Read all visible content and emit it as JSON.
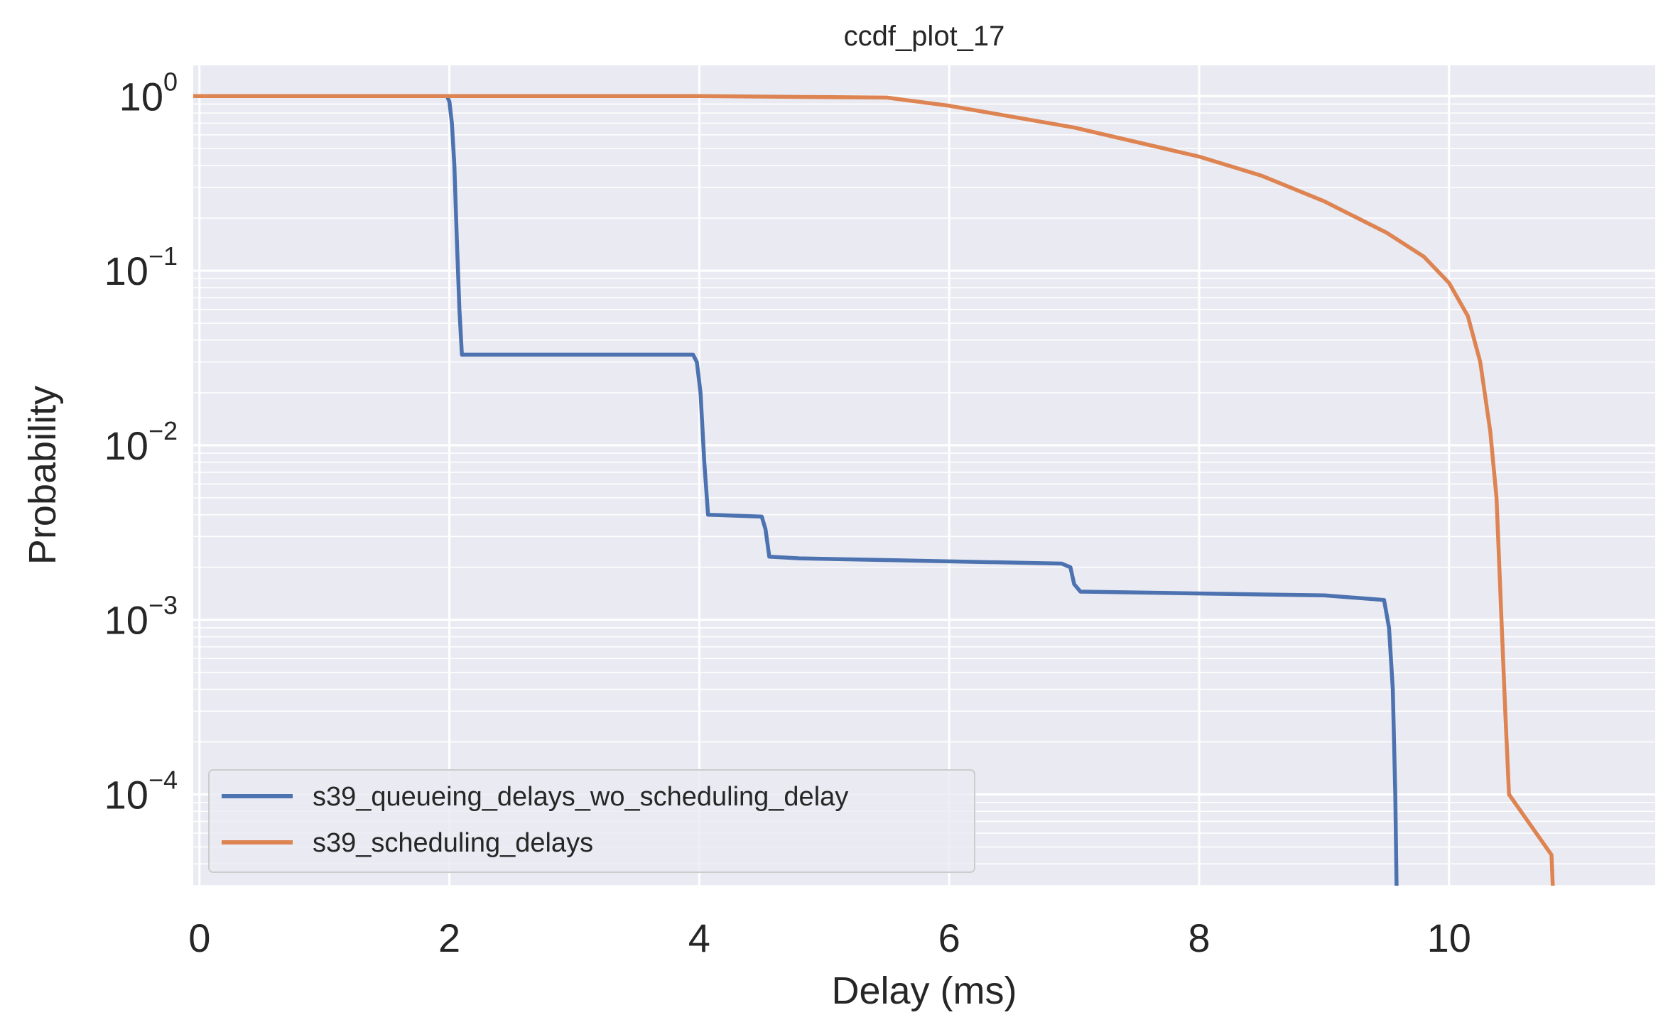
{
  "chart_data": {
    "type": "line",
    "title": "ccdf_plot_17",
    "xlabel": "Delay (ms)",
    "ylabel": "Probability",
    "xlim": [
      -0.05,
      11.65
    ],
    "ylim": [
      3e-05,
      1.5
    ],
    "yscale": "log",
    "x_ticks": [
      {
        "value": 0,
        "label": "0"
      },
      {
        "value": 2,
        "label": "2"
      },
      {
        "value": 4,
        "label": "4"
      },
      {
        "value": 6,
        "label": "6"
      },
      {
        "value": 8,
        "label": "8"
      },
      {
        "value": 10,
        "label": "10"
      }
    ],
    "y_ticks": [
      {
        "value": 1,
        "base": "10",
        "exp": "0"
      },
      {
        "value": 0.1,
        "base": "10",
        "exp": "−1"
      },
      {
        "value": 0.01,
        "base": "10",
        "exp": "−2"
      },
      {
        "value": 0.001,
        "base": "10",
        "exp": "−3"
      },
      {
        "value": 0.0001,
        "base": "10",
        "exp": "−4"
      }
    ],
    "grid": true,
    "legend_position": "lower-left",
    "series": [
      {
        "name": "s39_queueing_delays_wo_scheduling_delay",
        "color": "#4c72b0",
        "points": [
          [
            -0.05,
            1.0
          ],
          [
            1.98,
            1.0
          ],
          [
            2.0,
            0.93
          ],
          [
            2.02,
            0.7
          ],
          [
            2.04,
            0.4
          ],
          [
            2.06,
            0.15
          ],
          [
            2.08,
            0.06
          ],
          [
            2.1,
            0.033
          ],
          [
            3.95,
            0.033
          ],
          [
            3.98,
            0.03
          ],
          [
            4.01,
            0.02
          ],
          [
            4.04,
            0.008
          ],
          [
            4.07,
            0.004
          ],
          [
            4.5,
            0.0039
          ],
          [
            4.53,
            0.0033
          ],
          [
            4.56,
            0.0023
          ],
          [
            4.8,
            0.00225
          ],
          [
            6.9,
            0.0021
          ],
          [
            6.97,
            0.002
          ],
          [
            7.0,
            0.0016
          ],
          [
            7.05,
            0.00145
          ],
          [
            9.0,
            0.00138
          ],
          [
            9.48,
            0.0013
          ],
          [
            9.52,
            0.0009
          ],
          [
            9.55,
            0.0004
          ],
          [
            9.57,
            0.0001
          ],
          [
            9.58,
            3e-05
          ]
        ]
      },
      {
        "name": "s39_scheduling_delays",
        "color": "#dd8452",
        "points": [
          [
            -0.05,
            1.0
          ],
          [
            1.0,
            1.0
          ],
          [
            4.0,
            1.0
          ],
          [
            5.5,
            0.98
          ],
          [
            6.0,
            0.88
          ],
          [
            7.0,
            0.66
          ],
          [
            8.0,
            0.45
          ],
          [
            8.5,
            0.35
          ],
          [
            9.0,
            0.25
          ],
          [
            9.5,
            0.165
          ],
          [
            9.8,
            0.12
          ],
          [
            10.0,
            0.085
          ],
          [
            10.15,
            0.055
          ],
          [
            10.25,
            0.03
          ],
          [
            10.33,
            0.012
          ],
          [
            10.38,
            0.005
          ],
          [
            10.42,
            0.001
          ],
          [
            10.45,
            0.0003
          ],
          [
            10.48,
            0.0001
          ],
          [
            10.82,
            4.5e-05
          ],
          [
            10.83,
            3e-05
          ]
        ]
      }
    ]
  }
}
